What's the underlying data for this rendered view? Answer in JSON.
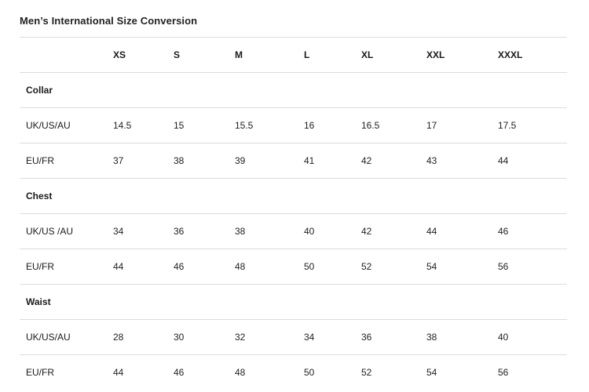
{
  "title": "Men’s International Size Conversion",
  "sizes": [
    "XS",
    "S",
    "M",
    "L",
    "XL",
    "XXL",
    "XXXL"
  ],
  "sections": [
    {
      "name": "Collar",
      "rows": [
        {
          "label": "UK/US/AU",
          "values": [
            "14.5",
            "15",
            "15.5",
            "16",
            "16.5",
            "17",
            "17.5"
          ]
        },
        {
          "label": "EU/FR",
          "values": [
            "37",
            "38",
            "39",
            "41",
            "42",
            "43",
            "44"
          ]
        }
      ]
    },
    {
      "name": "Chest",
      "rows": [
        {
          "label": "UK/US /AU",
          "values": [
            "34",
            "36",
            "38",
            "40",
            "42",
            "44",
            "46"
          ]
        },
        {
          "label": "EU/FR",
          "values": [
            "44",
            "46",
            "48",
            "50",
            "52",
            "54",
            "56"
          ]
        }
      ]
    },
    {
      "name": "Waist",
      "rows": [
        {
          "label": "UK/US/AU",
          "values": [
            "28",
            "30",
            "32",
            "34",
            "36",
            "38",
            "40"
          ]
        },
        {
          "label": "EU/FR",
          "values": [
            "44",
            "46",
            "48",
            "50",
            "52",
            "54",
            "56"
          ]
        }
      ]
    }
  ]
}
